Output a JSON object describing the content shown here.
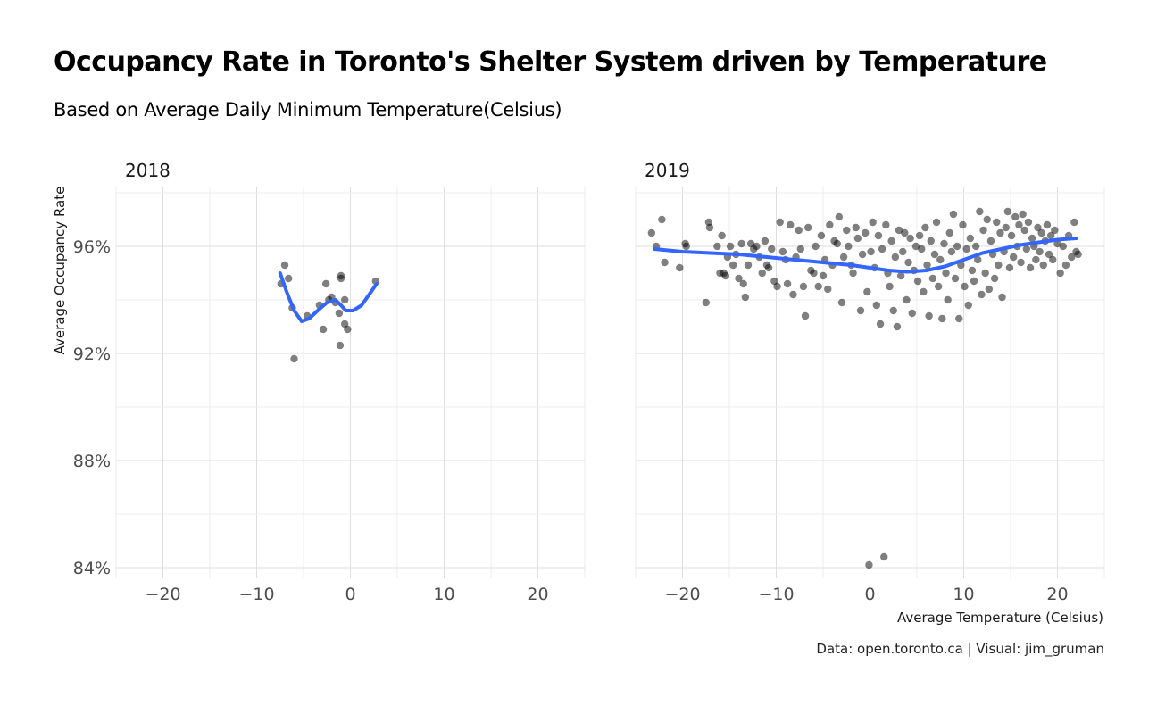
{
  "title": "Occupancy Rate in Toronto's Shelter System driven by  Temperature",
  "subtitle": "Based on Average Daily Minimum Temperature(Celsius)",
  "caption": "Data: open.toronto.ca | Visual: jim_gruman",
  "chart_data": {
    "type": "scatter",
    "facet_by": "year",
    "xlabel": "Average Temperature (Celsius)",
    "ylabel": "Average Occupancy Rate",
    "xlim": [
      -25,
      25
    ],
    "ylim": [
      83.6,
      98.2
    ],
    "x_ticks": [
      -20,
      -10,
      0,
      10,
      20
    ],
    "y_ticks": [
      84,
      88,
      92,
      96
    ],
    "y_tick_labels": [
      "84%",
      "88%",
      "92%",
      "96%"
    ],
    "grid": true,
    "point_color": "#000000",
    "point_alpha": 0.5,
    "smooth_color": "#3366FF",
    "panels": [
      {
        "label": "2018",
        "points": [
          [
            -7.4,
            94.6
          ],
          [
            -7.0,
            95.3
          ],
          [
            -6.6,
            94.8
          ],
          [
            -6.2,
            93.7
          ],
          [
            -6.0,
            91.8
          ],
          [
            -4.6,
            93.4
          ],
          [
            -3.3,
            93.8
          ],
          [
            -2.9,
            92.9
          ],
          [
            -2.6,
            94.6
          ],
          [
            -2.3,
            94.0
          ],
          [
            -2.0,
            94.1
          ],
          [
            -1.6,
            93.9
          ],
          [
            -1.2,
            93.5
          ],
          [
            -1.1,
            92.3
          ],
          [
            -1.0,
            94.9
          ],
          [
            -1.0,
            94.8
          ],
          [
            -0.6,
            93.1
          ],
          [
            -0.6,
            94.0
          ],
          [
            -0.3,
            92.9
          ],
          [
            2.7,
            94.7
          ]
        ],
        "smooth": [
          [
            -7.5,
            95.0
          ],
          [
            -6.8,
            94.3
          ],
          [
            -6.0,
            93.6
          ],
          [
            -5.2,
            93.2
          ],
          [
            -4.4,
            93.3
          ],
          [
            -3.5,
            93.6
          ],
          [
            -2.5,
            93.9
          ],
          [
            -1.6,
            94.0
          ],
          [
            -1.0,
            93.8
          ],
          [
            -0.5,
            93.6
          ],
          [
            0.3,
            93.6
          ],
          [
            1.2,
            93.8
          ],
          [
            2.0,
            94.2
          ],
          [
            2.8,
            94.6
          ]
        ]
      },
      {
        "label": "2019",
        "points": [
          [
            -23.3,
            96.5
          ],
          [
            -22.8,
            96.0
          ],
          [
            -22.2,
            97.0
          ],
          [
            -21.9,
            95.4
          ],
          [
            -20.3,
            95.2
          ],
          [
            -19.7,
            96.1
          ],
          [
            -19.6,
            96.0
          ],
          [
            -17.5,
            93.9
          ],
          [
            -17.2,
            96.9
          ],
          [
            -17.1,
            96.7
          ],
          [
            -16.3,
            96.0
          ],
          [
            -16.0,
            95.0
          ],
          [
            -15.8,
            96.4
          ],
          [
            -15.6,
            95.0
          ],
          [
            -15.4,
            94.9
          ],
          [
            -15.2,
            95.6
          ],
          [
            -14.9,
            96.0
          ],
          [
            -14.6,
            95.3
          ],
          [
            -14.3,
            95.7
          ],
          [
            -14.0,
            94.8
          ],
          [
            -13.7,
            96.1
          ],
          [
            -13.5,
            94.6
          ],
          [
            -13.3,
            94.1
          ],
          [
            -13.0,
            95.3
          ],
          [
            -12.7,
            96.1
          ],
          [
            -12.4,
            95.9
          ],
          [
            -12.1,
            96.0
          ],
          [
            -11.8,
            95.6
          ],
          [
            -11.5,
            95.0
          ],
          [
            -11.2,
            96.2
          ],
          [
            -11.0,
            95.3
          ],
          [
            -10.8,
            95.2
          ],
          [
            -10.5,
            95.9
          ],
          [
            -10.2,
            94.7
          ],
          [
            -9.9,
            94.5
          ],
          [
            -9.6,
            96.9
          ],
          [
            -9.3,
            95.8
          ],
          [
            -9.0,
            95.5
          ],
          [
            -8.8,
            94.6
          ],
          [
            -8.5,
            96.8
          ],
          [
            -8.2,
            94.2
          ],
          [
            -7.9,
            95.6
          ],
          [
            -7.6,
            96.6
          ],
          [
            -7.4,
            95.9
          ],
          [
            -7.1,
            94.5
          ],
          [
            -6.9,
            93.4
          ],
          [
            -6.6,
            96.7
          ],
          [
            -6.3,
            95.1
          ],
          [
            -6.0,
            95.0
          ],
          [
            -5.8,
            96.0
          ],
          [
            -5.5,
            94.5
          ],
          [
            -5.2,
            96.4
          ],
          [
            -5.0,
            94.9
          ],
          [
            -4.8,
            95.5
          ],
          [
            -4.5,
            94.4
          ],
          [
            -4.3,
            96.8
          ],
          [
            -4.0,
            95.3
          ],
          [
            -3.8,
            96.2
          ],
          [
            -3.5,
            96.1
          ],
          [
            -3.3,
            97.1
          ],
          [
            -3.0,
            93.9
          ],
          [
            -2.8,
            95.6
          ],
          [
            -2.5,
            96.6
          ],
          [
            -2.3,
            96.0
          ],
          [
            -2.0,
            95.3
          ],
          [
            -1.8,
            95.0
          ],
          [
            -1.5,
            96.7
          ],
          [
            -1.3,
            96.3
          ],
          [
            -1.0,
            93.6
          ],
          [
            -0.8,
            95.7
          ],
          [
            -0.5,
            96.5
          ],
          [
            -0.3,
            94.3
          ],
          [
            -0.1,
            84.1
          ],
          [
            0.1,
            95.8
          ],
          [
            0.3,
            96.9
          ],
          [
            0.5,
            95.2
          ],
          [
            0.7,
            93.8
          ],
          [
            0.9,
            96.4
          ],
          [
            1.1,
            93.1
          ],
          [
            1.3,
            95.9
          ],
          [
            1.5,
            84.4
          ],
          [
            1.7,
            96.8
          ],
          [
            1.9,
            95.0
          ],
          [
            2.1,
            94.5
          ],
          [
            2.3,
            96.2
          ],
          [
            2.5,
            93.6
          ],
          [
            2.7,
            95.6
          ],
          [
            2.9,
            93.0
          ],
          [
            3.1,
            96.6
          ],
          [
            3.3,
            94.9
          ],
          [
            3.5,
            95.8
          ],
          [
            3.7,
            96.5
          ],
          [
            3.9,
            94.0
          ],
          [
            4.1,
            95.4
          ],
          [
            4.3,
            96.3
          ],
          [
            4.5,
            93.5
          ],
          [
            4.7,
            95.1
          ],
          [
            4.9,
            96.0
          ],
          [
            5.1,
            94.7
          ],
          [
            5.3,
            96.4
          ],
          [
            5.5,
            95.9
          ],
          [
            5.7,
            94.3
          ],
          [
            5.9,
            96.7
          ],
          [
            6.1,
            95.3
          ],
          [
            6.3,
            93.4
          ],
          [
            6.5,
            96.2
          ],
          [
            6.7,
            94.8
          ],
          [
            6.9,
            95.7
          ],
          [
            7.1,
            96.9
          ],
          [
            7.3,
            94.5
          ],
          [
            7.5,
            95.5
          ],
          [
            7.7,
            93.3
          ],
          [
            7.9,
            96.1
          ],
          [
            8.1,
            95.0
          ],
          [
            8.3,
            94.0
          ],
          [
            8.5,
            96.5
          ],
          [
            8.7,
            95.8
          ],
          [
            8.9,
            97.2
          ],
          [
            9.1,
            94.8
          ],
          [
            9.3,
            96.0
          ],
          [
            9.5,
            93.3
          ],
          [
            9.7,
            95.3
          ],
          [
            9.9,
            96.8
          ],
          [
            10.1,
            94.5
          ],
          [
            10.3,
            95.9
          ],
          [
            10.5,
            93.8
          ],
          [
            10.7,
            96.3
          ],
          [
            10.9,
            95.1
          ],
          [
            11.1,
            94.7
          ],
          [
            11.3,
            96.0
          ],
          [
            11.5,
            95.5
          ],
          [
            11.7,
            97.3
          ],
          [
            11.9,
            94.2
          ],
          [
            12.1,
            96.6
          ],
          [
            12.3,
            95.0
          ],
          [
            12.5,
            97.0
          ],
          [
            12.7,
            94.4
          ],
          [
            12.9,
            96.2
          ],
          [
            13.1,
            95.7
          ],
          [
            13.3,
            94.8
          ],
          [
            13.5,
            96.9
          ],
          [
            13.7,
            95.3
          ],
          [
            13.9,
            96.5
          ],
          [
            14.1,
            94.1
          ],
          [
            14.3,
            95.8
          ],
          [
            14.5,
            96.7
          ],
          [
            14.7,
            97.3
          ],
          [
            14.9,
            95.2
          ],
          [
            15.1,
            96.4
          ],
          [
            15.3,
            95.6
          ],
          [
            15.5,
            97.1
          ],
          [
            15.7,
            96.0
          ],
          [
            15.9,
            96.8
          ],
          [
            16.1,
            95.4
          ],
          [
            16.3,
            97.2
          ],
          [
            16.5,
            96.6
          ],
          [
            16.7,
            95.9
          ],
          [
            16.9,
            96.9
          ],
          [
            17.1,
            95.2
          ],
          [
            17.3,
            96.3
          ],
          [
            17.5,
            96.0
          ],
          [
            17.7,
            95.5
          ],
          [
            17.9,
            96.7
          ],
          [
            18.1,
            95.8
          ],
          [
            18.3,
            96.5
          ],
          [
            18.5,
            95.3
          ],
          [
            18.7,
            96.2
          ],
          [
            18.9,
            96.8
          ],
          [
            19.1,
            95.7
          ],
          [
            19.3,
            96.4
          ],
          [
            19.5,
            95.5
          ],
          [
            19.7,
            96.6
          ],
          [
            20.0,
            96.1
          ],
          [
            20.3,
            95.0
          ],
          [
            20.6,
            96.0
          ],
          [
            20.9,
            95.3
          ],
          [
            21.2,
            96.4
          ],
          [
            21.5,
            95.6
          ],
          [
            21.8,
            96.9
          ],
          [
            22.0,
            95.8
          ],
          [
            22.2,
            95.7
          ]
        ],
        "smooth": [
          [
            -23.0,
            95.9
          ],
          [
            -20.0,
            95.8
          ],
          [
            -17.0,
            95.75
          ],
          [
            -14.0,
            95.7
          ],
          [
            -11.0,
            95.6
          ],
          [
            -8.0,
            95.5
          ],
          [
            -5.0,
            95.4
          ],
          [
            -2.0,
            95.3
          ],
          [
            0.0,
            95.2
          ],
          [
            2.0,
            95.1
          ],
          [
            4.0,
            95.05
          ],
          [
            6.0,
            95.1
          ],
          [
            8.0,
            95.25
          ],
          [
            10.0,
            95.5
          ],
          [
            12.0,
            95.75
          ],
          [
            14.0,
            95.9
          ],
          [
            16.0,
            96.05
          ],
          [
            18.0,
            96.15
          ],
          [
            20.0,
            96.25
          ],
          [
            22.0,
            96.3
          ]
        ]
      }
    ]
  }
}
